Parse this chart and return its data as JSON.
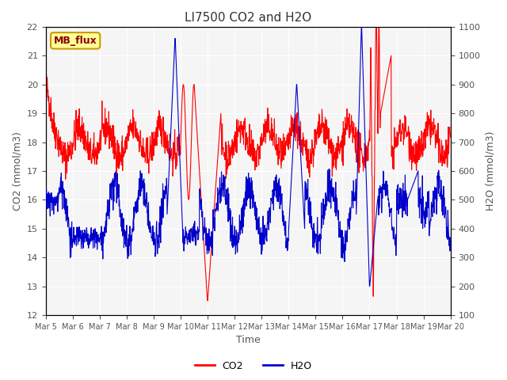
{
  "title": "LI7500 CO2 and H2O",
  "xlabel": "Time",
  "ylabel_left": "CO2 (mmol/m3)",
  "ylabel_right": "H2O (mmol/m3)",
  "co2_ylim": [
    12.0,
    22.0
  ],
  "h2o_ylim": [
    100,
    1100
  ],
  "co2_color": "#FF0000",
  "h2o_color": "#0000CD",
  "legend_label_co2": "CO2",
  "legend_label_h2o": "H2O",
  "annotation_text": "MB_flux",
  "annotation_bg": "#FFFF99",
  "annotation_border": "#CC9900",
  "background_color": "#E8E8E8",
  "plot_bg_color": "#F5F5F5",
  "x_ticks": [
    "Mar 5",
    "Mar 6",
    "Mar 7",
    "Mar 8",
    "Mar 9",
    "Mar 10",
    "Mar 11",
    "Mar 12",
    "Mar 13",
    "Mar 14",
    "Mar 15",
    "Mar 16",
    "Mar 17",
    "Mar 18",
    "Mar 19",
    "Mar 20"
  ],
  "n_points": 1500
}
